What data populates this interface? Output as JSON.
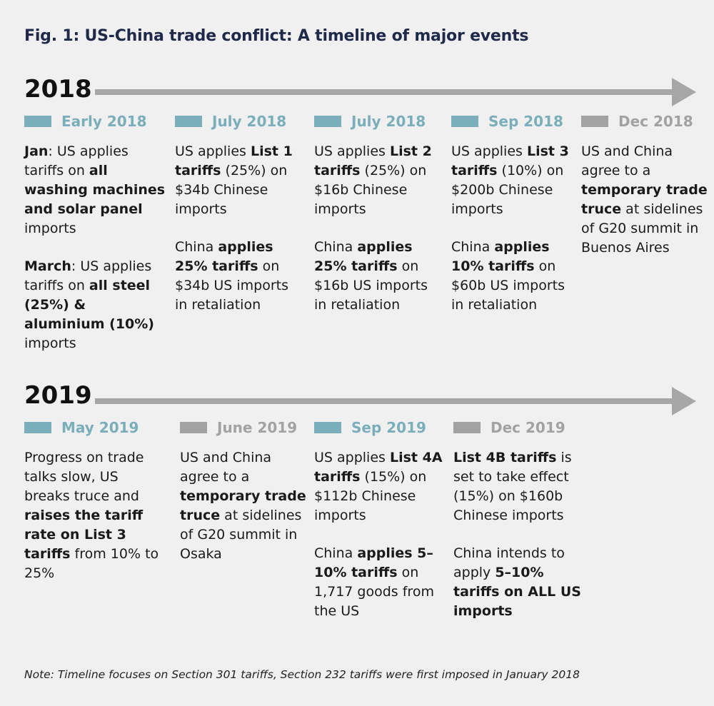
{
  "title": "Fig. 1: US-China trade conflict: A timeline of major events",
  "timelines": [
    {
      "year": "2018",
      "events": [
        {
          "label": "Early 2018",
          "color": "#7aaeba",
          "paragraphs": [
            [
              {
                "t": "Jan",
                "b": true
              },
              {
                "t": ": US applies tariffs on "
              },
              {
                "t": "all washing machines and solar panel",
                "b": true
              },
              {
                "t": " imports"
              }
            ],
            [
              {
                "t": "March",
                "b": true
              },
              {
                "t": ": US applies tariffs on "
              },
              {
                "t": "all steel (25%) & aluminium (10%)",
                "b": true
              },
              {
                "t": " imports"
              }
            ]
          ]
        },
        {
          "label": "July 2018",
          "color": "#7aaeba",
          "paragraphs": [
            [
              {
                "t": "US applies "
              },
              {
                "t": "List 1 tariffs",
                "b": true
              },
              {
                "t": " (25%) on $34b Chinese imports"
              }
            ],
            [
              {
                "t": "China "
              },
              {
                "t": "applies 25% tariffs",
                "b": true
              },
              {
                "t": " on $34b US imports in retaliation"
              }
            ]
          ]
        },
        {
          "label": "July 2018",
          "color": "#7aaeba",
          "paragraphs": [
            [
              {
                "t": "US applies "
              },
              {
                "t": "List 2 tariffs",
                "b": true
              },
              {
                "t": " (25%) on $16b Chinese imports"
              }
            ],
            [
              {
                "t": "China "
              },
              {
                "t": "applies 25% tariffs",
                "b": true
              },
              {
                "t": " on $16b US imports in retaliation"
              }
            ]
          ]
        },
        {
          "label": "Sep 2018",
          "color": "#7aaeba",
          "paragraphs": [
            [
              {
                "t": "US applies "
              },
              {
                "t": "List 3 tariffs",
                "b": true
              },
              {
                "t": " (10%) on $200b Chinese imports"
              }
            ],
            [
              {
                "t": "China "
              },
              {
                "t": "applies 10% tariffs",
                "b": true
              },
              {
                "t": " on $60b US imports in retaliation"
              }
            ]
          ]
        },
        {
          "label": "Dec 2018",
          "color": "#a2a2a2",
          "paragraphs": [
            [
              {
                "t": "US and China agree to a "
              },
              {
                "t": "temporary trade truce",
                "b": true
              },
              {
                "t": " at sidelines of G20 summit in Buenos Aires"
              }
            ]
          ]
        }
      ]
    },
    {
      "year": "2019",
      "events": [
        {
          "label": "May 2019",
          "color": "#7aaeba",
          "paragraphs": [
            [
              {
                "t": "Progress on trade talks slow, US breaks truce and "
              },
              {
                "t": "raises the tariff rate on List 3 tariffs",
                "b": true
              },
              {
                "t": " from 10% to 25%"
              }
            ]
          ]
        },
        {
          "label": "June 2019",
          "color": "#a2a2a2",
          "paragraphs": [
            [
              {
                "t": "US and China agree to a "
              },
              {
                "t": "temporary trade truce",
                "b": true
              },
              {
                "t": " at sidelines of G20 summit in Osaka"
              }
            ]
          ]
        },
        {
          "label": "Sep 2019",
          "color": "#7aaeba",
          "paragraphs": [
            [
              {
                "t": "US applies "
              },
              {
                "t": "List 4A tariffs",
                "b": true
              },
              {
                "t": " (15%) on $112b Chinese imports"
              }
            ],
            [
              {
                "t": "China "
              },
              {
                "t": "applies 5–10% tariffs",
                "b": true
              },
              {
                "t": " on 1,717 goods from the US"
              }
            ]
          ]
        },
        {
          "label": "Dec 2019",
          "color": "#a2a2a2",
          "paragraphs": [
            [
              {
                "t": "List 4B tariffs",
                "b": true
              },
              {
                "t": " is set to take effect (15%) on $160b Chinese imports"
              }
            ],
            [
              {
                "t": "China intends to apply "
              },
              {
                "t": "5–10% tariffs on ALL US imports",
                "b": true
              }
            ]
          ]
        }
      ]
    }
  ],
  "note": "Note: Timeline focuses on Section 301 tariffs, Section 232 tariffs were first imposed in January 2018"
}
